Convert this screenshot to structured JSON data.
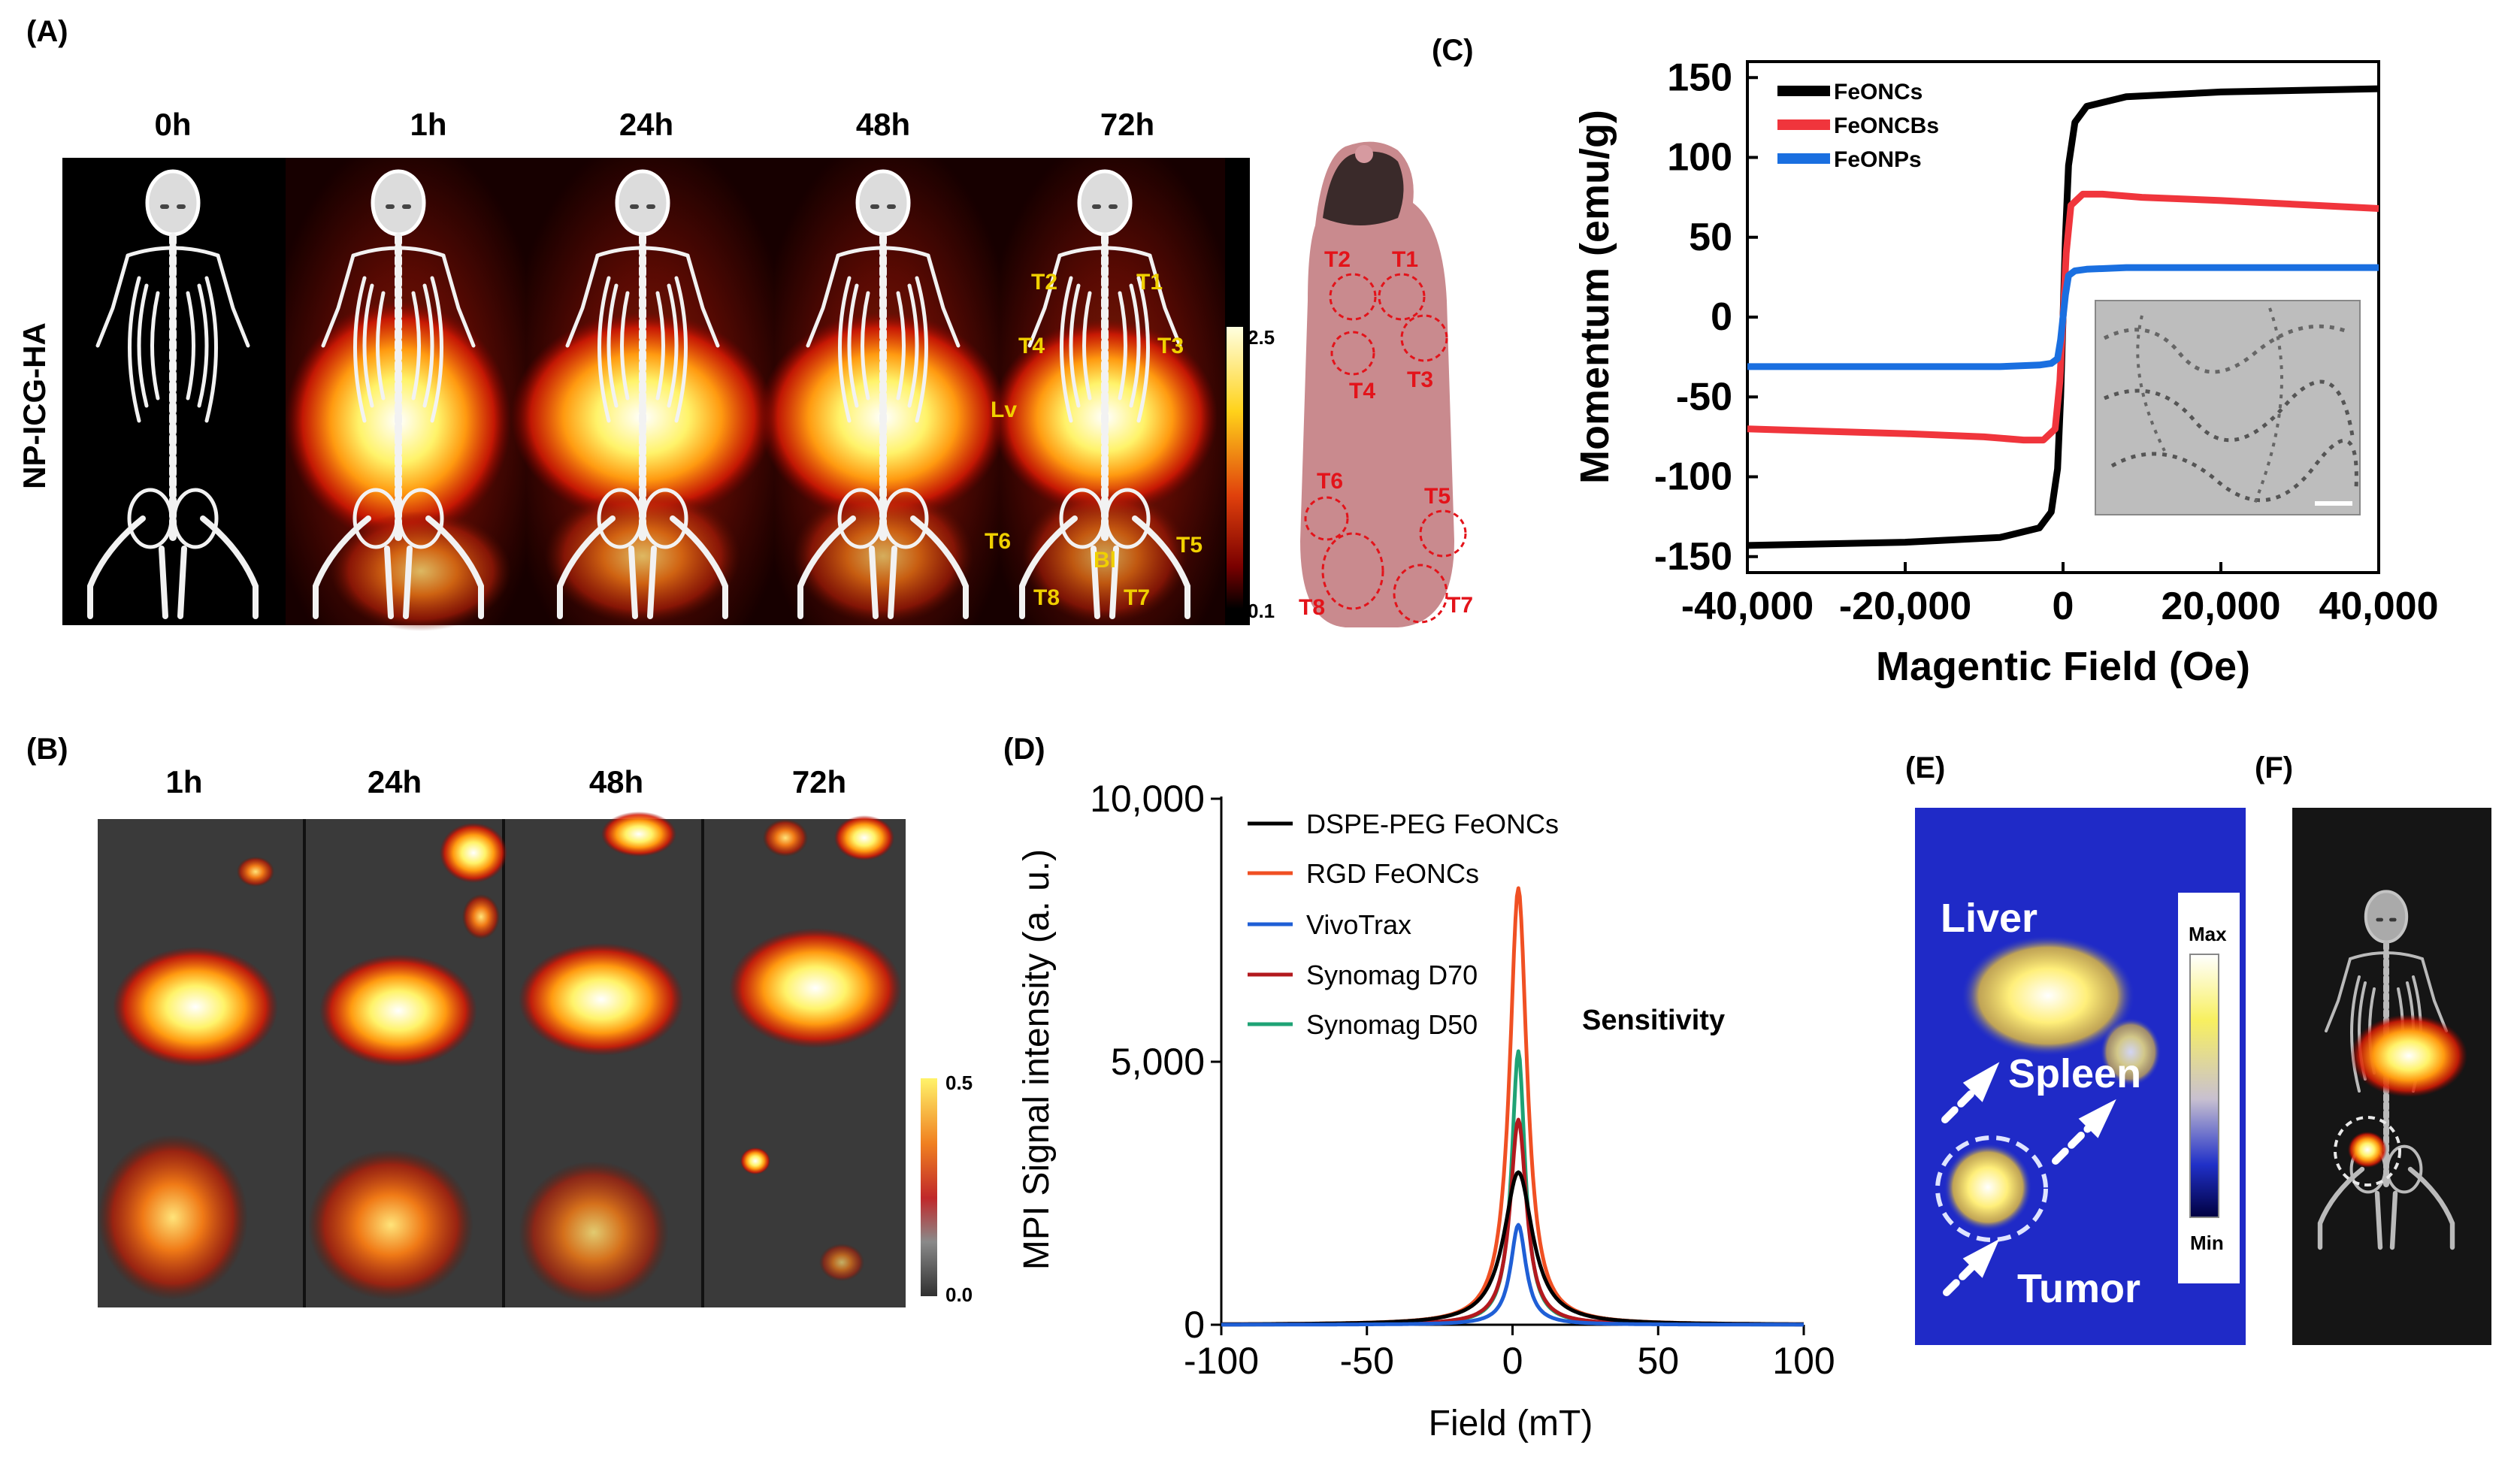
{
  "panels": {
    "a": {
      "label": "(A)",
      "row_label": "NP-ICG-HA",
      "timepoints": [
        "0h",
        "1h",
        "24h",
        "48h",
        "72h"
      ],
      "colorbar": {
        "max": "2.5",
        "min": "0.1"
      },
      "markers_72h": [
        "T2",
        "T1",
        "T4",
        "T3",
        "Lv",
        "T6",
        "T5",
        "Bl",
        "T8",
        "T7"
      ],
      "photo_markers": [
        "T2",
        "T1",
        "T4",
        "T3",
        "T6",
        "T5",
        "T8",
        "T7"
      ]
    },
    "b": {
      "label": "(B)",
      "timepoints": [
        "1h",
        "24h",
        "48h",
        "72h"
      ],
      "colorbar": {
        "max": "0.5",
        "min": "0.0"
      }
    },
    "c": {
      "label": "(C)"
    },
    "d": {
      "label": "(D)",
      "annotation": "Sensitivity"
    },
    "e": {
      "label": "(E)",
      "organs": [
        "Liver",
        "Spleen",
        "Tumor"
      ],
      "colorbar": {
        "max": "Max",
        "min": "Min"
      }
    },
    "f": {
      "label": "(F)"
    }
  },
  "chart_data": [
    {
      "id": "C",
      "type": "line",
      "xlabel": "Magentic Field (Oe)",
      "ylabel": "Momentum (emu/g)",
      "xlim": [
        -40000,
        40000
      ],
      "ylim": [
        -160,
        160
      ],
      "xticks": [
        -40000,
        -20000,
        0,
        20000,
        40000
      ],
      "xtick_labels": [
        "-40,000",
        "-20,000",
        "0",
        "20,000",
        "40,000"
      ],
      "yticks": [
        -150,
        -100,
        -50,
        0,
        50,
        100,
        150
      ],
      "ytick_labels": [
        "-150",
        "-100",
        "-50",
        "0",
        "50",
        "100",
        "150"
      ],
      "legend": "top-left",
      "series": [
        {
          "name": "FeONCs",
          "color": "#000000",
          "x": [
            -40000,
            -20000,
            -8000,
            -3000,
            -1500,
            -700,
            -300,
            0,
            300,
            700,
            1500,
            3000,
            8000,
            20000,
            40000
          ],
          "y": [
            -143,
            -141,
            -138,
            -132,
            -122,
            -95,
            -50,
            0,
            50,
            95,
            122,
            132,
            138,
            141,
            143
          ]
        },
        {
          "name": "FeONCBs",
          "color": "#f0353c",
          "x": [
            -40000,
            -20000,
            -10000,
            -5000,
            -2500,
            -1000,
            -400,
            0,
            400,
            1000,
            2500,
            5000,
            10000,
            20000,
            40000
          ],
          "y": [
            -70,
            -73,
            -75,
            -77,
            -77,
            -70,
            -40,
            0,
            40,
            70,
            77,
            77,
            75,
            73,
            68
          ]
        },
        {
          "name": "FeONPs",
          "color": "#1a6fe0",
          "x": [
            -40000,
            -20000,
            -8000,
            -3000,
            -1500,
            -700,
            -300,
            0,
            300,
            700,
            1500,
            3000,
            8000,
            20000,
            40000
          ],
          "y": [
            -31,
            -31,
            -31,
            -30,
            -29,
            -26,
            -14,
            0,
            14,
            26,
            29,
            30,
            31,
            31,
            31
          ]
        }
      ]
    },
    {
      "id": "D",
      "type": "line",
      "xlabel": "Field (mT)",
      "ylabel": "MPI Signal intensity (a. u.)",
      "xlim": [
        -100,
        100
      ],
      "ylim": [
        0,
        10000
      ],
      "xticks": [
        -100,
        -50,
        0,
        50,
        100
      ],
      "xtick_labels": [
        "-100",
        "-50",
        "0",
        "50",
        "100"
      ],
      "yticks": [
        0,
        5000,
        10000
      ],
      "ytick_labels": [
        "0",
        "5,000",
        "10,000"
      ],
      "legend": "top-left",
      "series": [
        {
          "name": "DSPE-PEG FeONCs",
          "color": "#000000",
          "center": 2,
          "peak": 2900,
          "gamma": 6
        },
        {
          "name": "RGD FeONCs",
          "color": "#f05023",
          "center": 2,
          "peak": 8300,
          "gamma": 3.6
        },
        {
          "name": "VivoTrax",
          "color": "#1f5fd6",
          "center": 2,
          "peak": 1900,
          "gamma": 3.2
        },
        {
          "name": "Synomag D70",
          "color": "#b3191e",
          "center": 2,
          "peak": 3900,
          "gamma": 3.4
        },
        {
          "name": "Synomag D50",
          "color": "#1fa375",
          "center": 2,
          "peak": 5200,
          "gamma": 2.8
        }
      ]
    }
  ]
}
